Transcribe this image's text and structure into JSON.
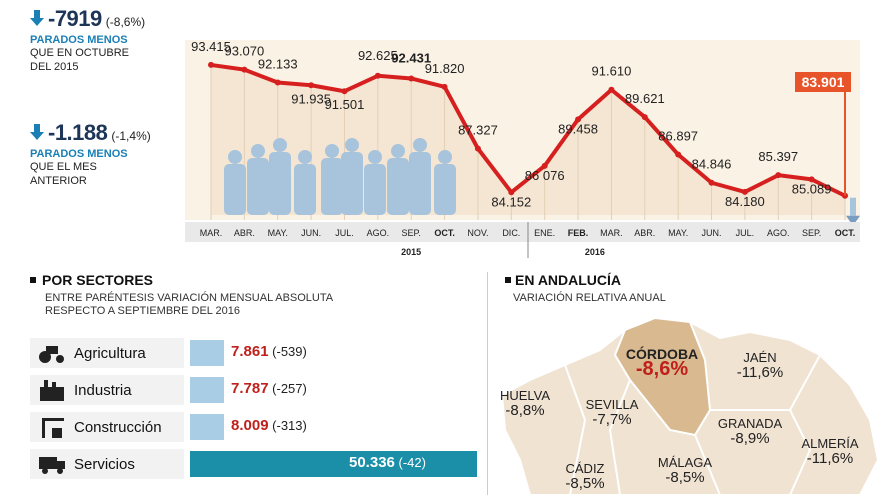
{
  "kpis": [
    {
      "value": "-7919",
      "pct": "(-8,6%)",
      "label": "PARADOS MENOS",
      "sub1": "QUE EN OCTUBRE",
      "sub2": "DEL 2015"
    },
    {
      "value": "-1.188",
      "pct": "(-1,4%)",
      "label": "PARADOS MENOS",
      "sub1": "QUE EL MES",
      "sub2": "ANTERIOR"
    }
  ],
  "chart_data": {
    "type": "line",
    "x": [
      "MAR.",
      "ABR.",
      "MAY.",
      "JUN.",
      "JUL.",
      "AGO.",
      "SEP.",
      "OCT.",
      "NOV.",
      "DIC.",
      "ENE.",
      "FEB.",
      "MAR.",
      "ABR.",
      "MAY.",
      "JUN.",
      "JUL.",
      "AGO.",
      "SEP.",
      "OCT."
    ],
    "x_bold": [
      false,
      false,
      false,
      false,
      false,
      false,
      false,
      true,
      false,
      false,
      false,
      true,
      false,
      false,
      false,
      false,
      false,
      false,
      false,
      true
    ],
    "years": [
      {
        "label": "2015"
      },
      {
        "label": "2016"
      }
    ],
    "series": [
      {
        "values": [
          93415,
          93070,
          92133,
          91935,
          91501,
          92625,
          92431,
          91820,
          87327,
          84152,
          86076,
          89458,
          91610,
          89621,
          86897,
          84846,
          84180,
          85397,
          85089,
          83901
        ],
        "labels": [
          "93.415",
          "93.070",
          "92.133",
          "91.935",
          "91.501",
          "92.625",
          "92.431",
          "91.820",
          "87.327",
          "84.152",
          "86 076",
          "89.458",
          "91.610",
          "89.621",
          "86.897",
          "84.846",
          "84.180",
          "85.397",
          "85.089",
          "83.901"
        ],
        "color": "#d6201f"
      }
    ],
    "ylim": [
      82500,
      94500
    ],
    "highlight_last": true,
    "highlight_color": "#e8542a"
  },
  "sectores": {
    "title": "POR SECTORES",
    "sub1": "ENTRE PARÉNTESIS VARIACIÓN MENSUAL ABSOLUTA",
    "sub2": "RESPECTO A SEPTIEMBRE DEL 2016",
    "rows": [
      {
        "name": "Agricultura",
        "value": "7.861",
        "change": "(-539)",
        "num": 7861,
        "icon": "tractor-icon"
      },
      {
        "name": "Industria",
        "value": "7.787",
        "change": "(-257)",
        "num": 7787,
        "icon": "factory-icon"
      },
      {
        "name": "Construcción",
        "value": "8.009",
        "change": "(-313)",
        "num": 8009,
        "icon": "crane-icon"
      },
      {
        "name": "Servicios",
        "value": "50.336",
        "change": "(-42)",
        "num": 50336,
        "icon": "truck-icon"
      }
    ]
  },
  "andalucia": {
    "title": "EN ANDALUCÍA",
    "sub": "VARIACIÓN RELATIVA ANUAL",
    "provinces": [
      {
        "name": "CÓRDOBA",
        "value": "-8,6%",
        "highlight": true
      },
      {
        "name": "JAÉN",
        "value": "-11,6%"
      },
      {
        "name": "HUELVA",
        "value": "-8,8%"
      },
      {
        "name": "SEVILLA",
        "value": "-7,7%"
      },
      {
        "name": "GRANADA",
        "value": "-8,9%"
      },
      {
        "name": "ALMERÍA",
        "value": "-11,6%"
      },
      {
        "name": "CÁDIZ",
        "value": "-8,5%"
      },
      {
        "name": "MÁLAGA",
        "value": "-8,5%"
      }
    ]
  },
  "colors": {
    "line": "#d6201f",
    "area": "#f5e6d3",
    "bar": "#a9cde4",
    "bar_highlight": "#1b8fa8",
    "accent": "#c0201c",
    "blue": "#1a7fb5"
  }
}
